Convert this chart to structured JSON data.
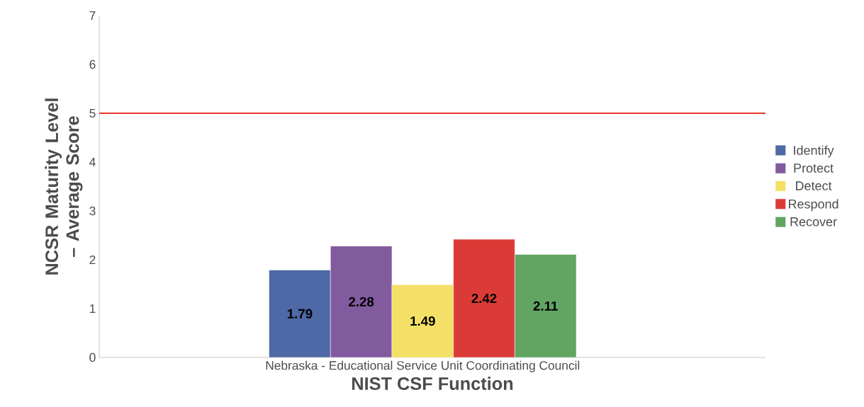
{
  "chart_data": {
    "type": "bar",
    "xlabel": "NIST CSF Function",
    "ylabel": "NCSR Maturity Level – Average Score",
    "categories": [
      "Nebraska - Educational Service Unit Coordinating Council"
    ],
    "series": [
      {
        "name": "Identify",
        "color": "#4e69a6",
        "values": [
          1.79
        ]
      },
      {
        "name": "Protect",
        "color": "#825a9e",
        "values": [
          2.28
        ]
      },
      {
        "name": "Detect",
        "color": "#f4e066",
        "values": [
          1.49
        ]
      },
      {
        "name": "Respond",
        "color": "#db3b37",
        "values": [
          2.42
        ]
      },
      {
        "name": "Recover",
        "color": "#62a462",
        "values": [
          2.11
        ]
      }
    ],
    "ylim": [
      0,
      7
    ],
    "yticks": [
      0,
      1,
      2,
      3,
      4,
      5,
      6,
      7
    ],
    "ref_lines": [
      {
        "axis": "y",
        "value": 5,
        "color": "#e8382c"
      }
    ],
    "data_labels": true,
    "grid": false,
    "legend": "right"
  }
}
